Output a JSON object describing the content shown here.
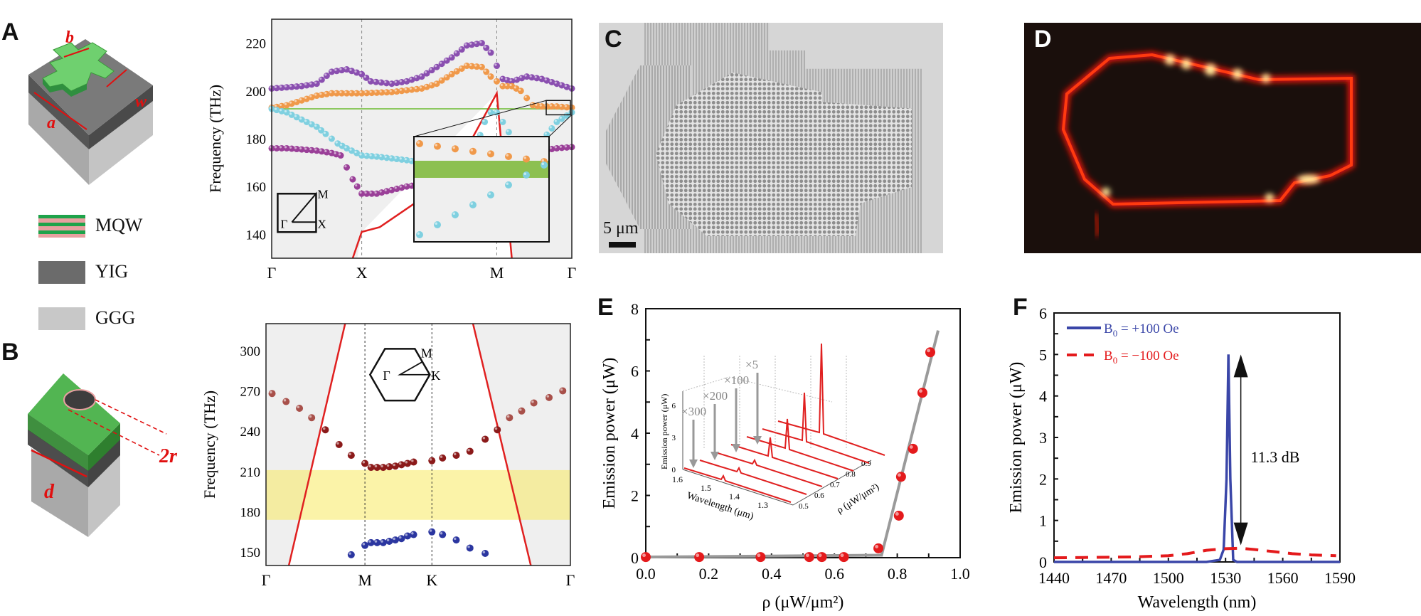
{
  "panels": {
    "A": {
      "letter": "A",
      "labels": {
        "a": "a",
        "b": "b",
        "w": "w"
      }
    },
    "B": {
      "letter": "B",
      "labels": {
        "d": "d",
        "r": "2r"
      }
    },
    "C": {
      "letter": "C",
      "scale_bar": "5 μm"
    },
    "D": {
      "letter": "D"
    },
    "E": {
      "letter": "E"
    },
    "F": {
      "letter": "F"
    }
  },
  "materials_legend": [
    {
      "label": "MQW",
      "colors": [
        "#1fa34a",
        "#e8a0a0"
      ]
    },
    {
      "label": "YIG",
      "colors": [
        "#6b6b6b"
      ]
    },
    {
      "label": "GGG",
      "colors": [
        "#c8c8c8"
      ]
    }
  ],
  "chart_data": [
    {
      "id": "band-square",
      "type": "scatter",
      "title": "",
      "ylabel": "Frequency (THz)",
      "xlabel": "",
      "ylim": [
        130,
        230
      ],
      "yticks": [
        140,
        160,
        180,
        200,
        220
      ],
      "xtick_labels": [
        "Γ",
        "X",
        "M",
        "Γ"
      ],
      "bz_inset": {
        "labels": [
          "Γ",
          "X",
          "M"
        ]
      },
      "gap_line_THz": 192.5,
      "series": [
        {
          "name": "band-purple-upper",
          "color": "#8a4fb0",
          "points": [
            [
              0,
              201
            ],
            [
              0.05,
              201.5
            ],
            [
              0.1,
              202
            ],
            [
              0.15,
              203
            ],
            [
              0.2,
              208
            ],
            [
              0.25,
              209
            ],
            [
              0.3,
              207
            ],
            [
              0.33,
              204
            ],
            [
              0.4,
              203
            ],
            [
              0.45,
              204
            ],
            [
              0.5,
              206
            ],
            [
              0.55,
              210
            ],
            [
              0.6,
              214
            ],
            [
              0.65,
              219
            ],
            [
              0.7,
              220
            ],
            [
              0.73,
              216
            ],
            [
              0.77,
              205
            ],
            [
              0.8,
              204
            ],
            [
              0.85,
              206
            ],
            [
              0.9,
              205
            ],
            [
              0.95,
              203
            ],
            [
              1.0,
              201
            ]
          ]
        },
        {
          "name": "band-orange",
          "color": "#f0994a",
          "points": [
            [
              0,
              193
            ],
            [
              0.05,
              194
            ],
            [
              0.1,
              196
            ],
            [
              0.15,
              198
            ],
            [
              0.2,
              199
            ],
            [
              0.3,
              199
            ],
            [
              0.4,
              199.5
            ],
            [
              0.5,
              201
            ],
            [
              0.55,
              203
            ],
            [
              0.6,
              207
            ],
            [
              0.65,
              210.5
            ],
            [
              0.7,
              210
            ],
            [
              0.73,
              206
            ],
            [
              0.77,
              202
            ],
            [
              0.8,
              202
            ],
            [
              0.83,
              200
            ],
            [
              0.85,
              197
            ],
            [
              0.87,
              194
            ],
            [
              0.9,
              193.5
            ],
            [
              0.95,
              193.5
            ],
            [
              1.0,
              193
            ]
          ]
        },
        {
          "name": "band-cyan",
          "color": "#7fd0e0",
          "points": [
            [
              0,
              192.5
            ],
            [
              0.05,
              191
            ],
            [
              0.1,
              188
            ],
            [
              0.15,
              185
            ],
            [
              0.18,
              182
            ],
            [
              0.22,
              178
            ],
            [
              0.25,
              176
            ],
            [
              0.3,
              173
            ],
            [
              0.35,
              172.5
            ],
            [
              0.45,
              171
            ],
            [
              0.5,
              170
            ],
            [
              0.6,
              168
            ],
            [
              0.64,
              166
            ],
            [
              0.68,
              176
            ],
            [
              0.71,
              187
            ],
            [
              0.73,
              191
            ],
            [
              0.75,
              191
            ],
            [
              0.77,
              187
            ],
            [
              0.85,
              170
            ],
            [
              0.9,
              179
            ],
            [
              0.95,
              187
            ],
            [
              1.0,
              191
            ]
          ]
        },
        {
          "name": "band-purple-lower",
          "color": "#9a3f98",
          "points": [
            [
              0,
              176
            ],
            [
              0.05,
              176
            ],
            [
              0.1,
              175.5
            ],
            [
              0.15,
              175
            ],
            [
              0.2,
              174
            ],
            [
              0.23,
              173
            ],
            [
              0.25,
              168
            ],
            [
              0.27,
              163
            ],
            [
              0.3,
              157
            ],
            [
              0.35,
              157
            ],
            [
              0.45,
              160
            ],
            [
              0.5,
              161
            ],
            [
              0.55,
              162
            ],
            [
              0.7,
              163
            ],
            [
              0.8,
              163
            ],
            [
              0.9,
              175
            ],
            [
              0.95,
              176
            ],
            [
              1.0,
              176.5
            ]
          ]
        }
      ],
      "light_line_color": "#e02020",
      "inset_zoom": {
        "orange_band": "above",
        "green_gap": "highlighted",
        "cyan_band": "below"
      }
    },
    {
      "id": "band-hex",
      "type": "scatter",
      "ylabel": "Frequency (THz)",
      "ylim": [
        140,
        320
      ],
      "yticks": [
        150,
        180,
        210,
        240,
        270,
        300
      ],
      "xtick_labels": [
        "Γ",
        "M",
        "K",
        "Γ"
      ],
      "bz_inset": {
        "labels": [
          "Γ",
          "M",
          "K"
        ]
      },
      "bandgap_THz": [
        174,
        211
      ],
      "series": [
        {
          "name": "upper-band",
          "color": "#8b1a1a",
          "points": [
            [
              0.02,
              268
            ],
            [
              0.066,
              262
            ],
            [
              0.11,
              257
            ],
            [
              0.15,
              250
            ],
            [
              0.195,
              241
            ],
            [
              0.24,
              230
            ],
            [
              0.28,
              222
            ],
            [
              0.325,
              216
            ],
            [
              0.345,
              213
            ],
            [
              0.365,
              213
            ],
            [
              0.385,
              213
            ],
            [
              0.405,
              213.5
            ],
            [
              0.425,
              214
            ],
            [
              0.445,
              215
            ],
            [
              0.465,
              216
            ],
            [
              0.485,
              217
            ],
            [
              0.545,
              218
            ],
            [
              0.58,
              220
            ],
            [
              0.625,
              222
            ],
            [
              0.67,
              225
            ],
            [
              0.72,
              234
            ],
            [
              0.76,
              241
            ],
            [
              0.8,
              250
            ],
            [
              0.84,
              255
            ],
            [
              0.88,
              261
            ],
            [
              0.93,
              265
            ],
            [
              0.975,
              270
            ]
          ]
        },
        {
          "name": "lower-band",
          "color": "#2b36a0",
          "points": [
            [
              0.28,
              148
            ],
            [
              0.325,
              155
            ],
            [
              0.345,
              157
            ],
            [
              0.365,
              157
            ],
            [
              0.385,
              157
            ],
            [
              0.405,
              158
            ],
            [
              0.425,
              159
            ],
            [
              0.445,
              160
            ],
            [
              0.465,
              162
            ],
            [
              0.485,
              163
            ],
            [
              0.545,
              165
            ],
            [
              0.58,
              163
            ],
            [
              0.625,
              159
            ],
            [
              0.67,
              153
            ],
            [
              0.72,
              149
            ]
          ]
        }
      ],
      "light_line_color": "#e02020"
    },
    {
      "id": "lasing-threshold",
      "type": "scatter",
      "xlabel": "ρ (μW/μm²)",
      "ylabel": "Emission power (μW)",
      "xlim": [
        0,
        1.0
      ],
      "ylim": [
        0,
        8
      ],
      "xticks": [
        0.0,
        0.2,
        0.4,
        0.6,
        0.8,
        1.0
      ],
      "yticks": [
        0,
        2,
        4,
        6,
        8
      ],
      "series": [
        {
          "name": "measured",
          "color": "#e41a1c",
          "x": [
            0.0,
            0.17,
            0.365,
            0.52,
            0.56,
            0.63,
            0.74,
            0.805,
            0.812,
            0.85,
            0.88,
            0.905
          ],
          "y": [
            0.02,
            0.02,
            0.02,
            0.02,
            0.02,
            0.02,
            0.3,
            1.35,
            2.6,
            3.5,
            5.3,
            6.6
          ]
        },
        {
          "name": "fit",
          "color": "#9a9a9a",
          "type": "line",
          "x": [
            0.0,
            0.75,
            0.93
          ],
          "y": [
            0.02,
            0.08,
            7.3
          ]
        }
      ],
      "inset": {
        "type": "waterfall",
        "zlabel": "Emission power (μW)",
        "xlabel": "Wavelength (μm)",
        "ylabel": "ρ (μW/μm²)",
        "z_ticks": [
          "0",
          "3",
          "6"
        ],
        "wavelength_ticks": [
          "1.6",
          "1.5",
          "1.4",
          "1.3"
        ],
        "rho_ticks": [
          "0.5",
          "0.6",
          "0.7",
          "0.8",
          "0.9"
        ],
        "multipliers": [
          "×300",
          "×200",
          "×100",
          "×5"
        ]
      }
    },
    {
      "id": "spectrum",
      "type": "line",
      "xlabel": "Wavelength (nm)",
      "ylabel": "Emission power (μW)",
      "xlim": [
        1440,
        1590
      ],
      "ylim": [
        0,
        6
      ],
      "xticks": [
        1440,
        1470,
        1500,
        1530,
        1560,
        1590
      ],
      "yticks": [
        0,
        1,
        2,
        3,
        4,
        5,
        6
      ],
      "legend_position": "top-left",
      "annotation": "11.3 dB",
      "series": [
        {
          "name": "B₀ = +100 Oe",
          "legend_main": "B",
          "legend_sub": "0",
          "legend_rest": " = +100 Oe",
          "color": "#3a46a8",
          "style": "solid",
          "x": [
            1440,
            1520,
            1527,
            1529,
            1530.5,
            1531.5,
            1532.5,
            1534,
            1536,
            1590
          ],
          "y": [
            0.0,
            0.0,
            0.05,
            0.3,
            2.0,
            5.0,
            2.0,
            0.05,
            0.0,
            0.0
          ]
        },
        {
          "name": "B₀ = −100 Oe",
          "legend_main": "B",
          "legend_sub": "0",
          "legend_rest": " = −100 Oe",
          "color": "#e41a1c",
          "style": "dashed",
          "x": [
            1440,
            1460,
            1480,
            1500,
            1510,
            1520,
            1530,
            1538,
            1545,
            1555,
            1565,
            1575,
            1588
          ],
          "y": [
            0.1,
            0.11,
            0.12,
            0.15,
            0.2,
            0.28,
            0.32,
            0.33,
            0.3,
            0.25,
            0.2,
            0.17,
            0.15
          ]
        }
      ]
    }
  ]
}
